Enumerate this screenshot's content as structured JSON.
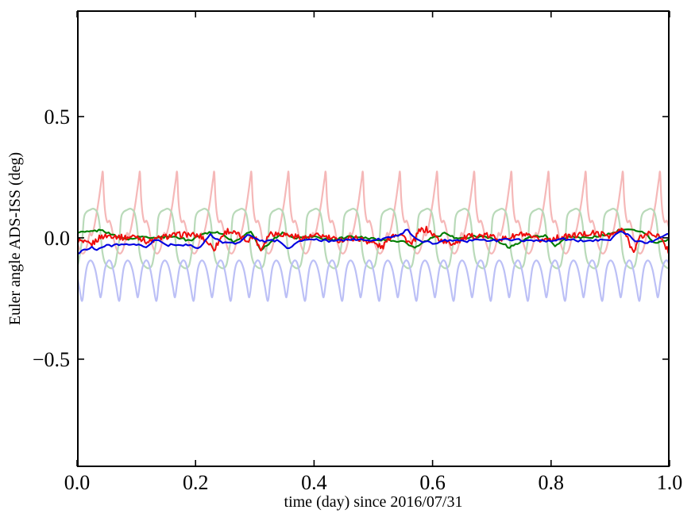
{
  "chart_data": {
    "type": "line",
    "title": "",
    "xlabel": "time (day) since 2016/07/31",
    "ylabel": "Euler angle ADS-ISS (deg)",
    "xlim": [
      0.0,
      1.0
    ],
    "ylim": [
      -0.945,
      0.938
    ],
    "grid": false,
    "legend": "none",
    "background": "#ffffff",
    "axis_color": "#000000",
    "xticks": {
      "values": [
        0.0,
        0.2,
        0.4,
        0.6,
        0.8,
        1.0
      ],
      "labels": [
        "0.0",
        "0.2",
        "0.4",
        "0.6",
        "0.8",
        "1.0"
      ]
    },
    "yticks": {
      "values": [
        -0.5,
        0.0,
        0.5
      ],
      "labels": [
        "−0.5",
        "0.0",
        "0.5"
      ]
    },
    "series": [
      {
        "name": "raw-1-red",
        "color": "#f5b8b8",
        "width": 2.2,
        "render": "periodic",
        "period": 0.0627,
        "phase": 0.0435,
        "cycles": 16,
        "template_t": [
          0,
          0.03,
          0.07,
          0.12,
          0.18,
          0.24,
          0.3,
          0.38,
          0.46,
          0.54,
          0.6,
          0.65,
          0.7,
          0.76,
          0.82,
          0.88,
          0.93,
          0.97,
          1.0
        ],
        "template_y": [
          0.27,
          0.17,
          0.1,
          0.065,
          0.07,
          0.04,
          -0.01,
          -0.05,
          -0.065,
          -0.05,
          -0.015,
          0.02,
          0.01,
          0.04,
          0.09,
          0.145,
          0.2,
          0.245,
          0.27
        ]
      },
      {
        "name": "raw-2-green",
        "color": "#b9dab9",
        "width": 2.2,
        "render": "periodic",
        "period": 0.0627,
        "phase": 0.009,
        "cycles": 16,
        "template_t": [
          0,
          0.04,
          0.1,
          0.2,
          0.3,
          0.4,
          0.46,
          0.5,
          0.54,
          0.6,
          0.7,
          0.8,
          0.88,
          0.94,
          1.0
        ],
        "template_y": [
          0.0,
          0.08,
          0.105,
          0.115,
          0.12,
          0.105,
          0.06,
          0.0,
          -0.06,
          -0.1,
          -0.12,
          -0.125,
          -0.11,
          -0.06,
          0.0
        ]
      },
      {
        "name": "raw-3-blue",
        "color": "#bcc0f6",
        "width": 2.2,
        "render": "periodic",
        "period": 0.0627,
        "phase": 0.0085,
        "cycles": 16,
        "template_t": [
          0,
          0.06,
          0.12,
          0.2,
          0.28,
          0.36,
          0.44,
          0.5,
          0.56,
          0.62,
          0.7,
          0.78,
          0.85,
          0.92,
          1.0
        ],
        "template_y": [
          -0.26,
          -0.19,
          -0.125,
          -0.095,
          -0.1,
          -0.135,
          -0.2,
          -0.245,
          -0.185,
          -0.125,
          -0.095,
          -0.1,
          -0.14,
          -0.2,
          -0.26
        ]
      },
      {
        "name": "filtered-2-green",
        "color": "#007d00",
        "width": 2.1,
        "render": "noisy",
        "noise_amp": 0.0045,
        "samples": 300,
        "seed": 2,
        "x": [
          0,
          0.02,
          0.04,
          0.055,
          0.07,
          0.09,
          0.11,
          0.135,
          0.16,
          0.19,
          0.215,
          0.235,
          0.25,
          0.265,
          0.285,
          0.295,
          0.31,
          0.325,
          0.345,
          0.37,
          0.4,
          0.43,
          0.46,
          0.49,
          0.52,
          0.55,
          0.57,
          0.595,
          0.62,
          0.645,
          0.67,
          0.7,
          0.73,
          0.76,
          0.79,
          0.808,
          0.83,
          0.86,
          0.89,
          0.915,
          0.935,
          0.955,
          0.975,
          1.0
        ],
        "y": [
          0.022,
          0.025,
          0.032,
          0.02,
          0.0,
          -0.005,
          0.005,
          0.0,
          0.008,
          -0.012,
          0.02,
          0.025,
          0.01,
          -0.02,
          0.018,
          0.022,
          -0.05,
          -0.02,
          0.02,
          0.0,
          0.005,
          -0.01,
          0.005,
          0.0,
          -0.01,
          -0.015,
          -0.042,
          -0.005,
          0.018,
          -0.005,
          0.005,
          0.0,
          -0.04,
          0.0,
          0.01,
          -0.035,
          0.005,
          0.0,
          0.01,
          0.03,
          0.035,
          0.025,
          -0.02,
          -0.01
        ]
      },
      {
        "name": "filtered-1-red",
        "color": "#ee0c0c",
        "width": 2.0,
        "render": "noisy",
        "noise_amp": 0.012,
        "samples": 480,
        "seed": 1,
        "x": [
          0,
          0.01,
          0.024,
          0.04,
          0.06,
          0.08,
          0.1,
          0.12,
          0.14,
          0.16,
          0.185,
          0.21,
          0.232,
          0.245,
          0.254,
          0.27,
          0.285,
          0.3,
          0.31,
          0.325,
          0.35,
          0.38,
          0.41,
          0.44,
          0.47,
          0.5,
          0.515,
          0.53,
          0.545,
          0.565,
          0.578,
          0.59,
          0.61,
          0.63,
          0.66,
          0.69,
          0.72,
          0.75,
          0.78,
          0.81,
          0.84,
          0.87,
          0.9,
          0.922,
          0.938,
          0.95,
          0.965,
          0.98,
          0.995,
          1.0
        ],
        "y": [
          -0.005,
          -0.02,
          -0.028,
          0.005,
          0.01,
          0.0,
          0.008,
          -0.018,
          0.0,
          0.01,
          0.015,
          0.005,
          -0.045,
          0.01,
          0.03,
          0.015,
          -0.01,
          0.005,
          -0.05,
          0.02,
          0.015,
          0.0,
          0.01,
          -0.01,
          0.0,
          -0.02,
          -0.04,
          0.01,
          0.02,
          -0.03,
          0.03,
          0.035,
          -0.005,
          -0.025,
          0.005,
          0.01,
          -0.005,
          0.015,
          -0.01,
          0.0,
          0.01,
          0.02,
          0.01,
          0.035,
          -0.055,
          0.0,
          0.02,
          0.01,
          -0.04,
          -0.06
        ]
      },
      {
        "name": "filtered-3-blue",
        "color": "#0000e0",
        "width": 2.1,
        "render": "noisy",
        "noise_amp": 0.005,
        "samples": 240,
        "seed": 3,
        "x": [
          0,
          0.012,
          0.025,
          0.033,
          0.045,
          0.055,
          0.07,
          0.09,
          0.1,
          0.115,
          0.133,
          0.14,
          0.155,
          0.175,
          0.195,
          0.208,
          0.225,
          0.232,
          0.25,
          0.27,
          0.29,
          0.295,
          0.315,
          0.34,
          0.357,
          0.375,
          0.4,
          0.43,
          0.46,
          0.49,
          0.515,
          0.54,
          0.558,
          0.575,
          0.6,
          0.625,
          0.65,
          0.68,
          0.71,
          0.74,
          0.77,
          0.8,
          0.82,
          0.85,
          0.88,
          0.9,
          0.918,
          0.93,
          0.945,
          0.965,
          0.98,
          1.0
        ],
        "y": [
          -0.068,
          -0.048,
          -0.038,
          -0.05,
          -0.035,
          -0.032,
          -0.026,
          -0.032,
          -0.028,
          -0.04,
          -0.008,
          -0.015,
          -0.03,
          -0.028,
          -0.035,
          -0.042,
          0.016,
          -0.005,
          -0.02,
          -0.025,
          0.02,
          0.005,
          -0.015,
          -0.01,
          -0.045,
          -0.012,
          -0.008,
          -0.015,
          -0.005,
          -0.012,
          -0.005,
          0.01,
          0.033,
          -0.01,
          -0.022,
          -0.01,
          -0.015,
          -0.008,
          -0.012,
          -0.005,
          -0.015,
          -0.01,
          -0.005,
          -0.012,
          -0.008,
          -0.005,
          0.03,
          0.01,
          -0.015,
          -0.02,
          -0.005,
          0.02
        ]
      }
    ]
  }
}
